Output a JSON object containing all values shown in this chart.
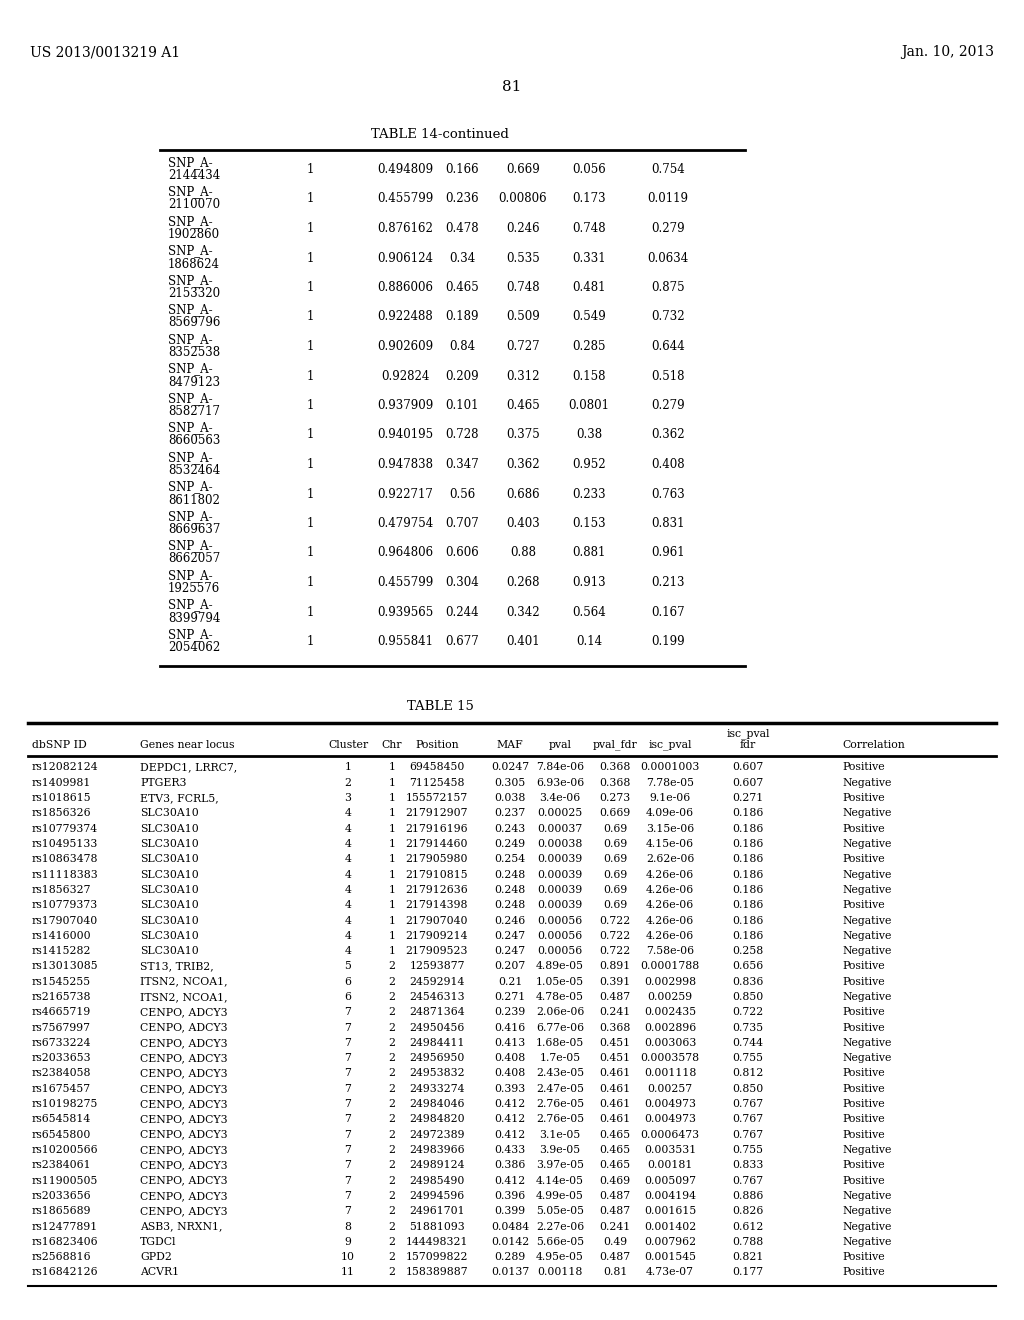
{
  "header_left": "US 2013/0013219 A1",
  "header_right": "Jan. 10, 2013",
  "page_number": "81",
  "table14_title": "TABLE 14-continued",
  "table15_title": "TABLE 15",
  "table14_rows": [
    [
      "SNP_A-",
      "2144434",
      "1",
      "0.494809",
      "0.166",
      "0.669",
      "0.056",
      "0.754"
    ],
    [
      "SNP_A-",
      "2110070",
      "1",
      "0.455799",
      "0.236",
      "0.00806",
      "0.173",
      "0.0119"
    ],
    [
      "SNP_A-",
      "1902860",
      "1",
      "0.876162",
      "0.478",
      "0.246",
      "0.748",
      "0.279"
    ],
    [
      "SNP_A-",
      "1868624",
      "1",
      "0.906124",
      "0.34",
      "0.535",
      "0.331",
      "0.0634"
    ],
    [
      "SNP_A-",
      "2153320",
      "1",
      "0.886006",
      "0.465",
      "0.748",
      "0.481",
      "0.875"
    ],
    [
      "SNP_A-",
      "8569796",
      "1",
      "0.922488",
      "0.189",
      "0.509",
      "0.549",
      "0.732"
    ],
    [
      "SNP_A-",
      "8352538",
      "1",
      "0.902609",
      "0.84",
      "0.727",
      "0.285",
      "0.644"
    ],
    [
      "SNP_A-",
      "8479123",
      "1",
      "0.92824",
      "0.209",
      "0.312",
      "0.158",
      "0.518"
    ],
    [
      "SNP_A-",
      "8582717",
      "1",
      "0.937909",
      "0.101",
      "0.465",
      "0.0801",
      "0.279"
    ],
    [
      "SNP_A-",
      "8660563",
      "1",
      "0.940195",
      "0.728",
      "0.375",
      "0.38",
      "0.362"
    ],
    [
      "SNP_A-",
      "8532464",
      "1",
      "0.947838",
      "0.347",
      "0.362",
      "0.952",
      "0.408"
    ],
    [
      "SNP_A-",
      "8611802",
      "1",
      "0.922717",
      "0.56",
      "0.686",
      "0.233",
      "0.763"
    ],
    [
      "SNP_A-",
      "8669637",
      "1",
      "0.479754",
      "0.707",
      "0.403",
      "0.153",
      "0.831"
    ],
    [
      "SNP_A-",
      "8662057",
      "1",
      "0.964806",
      "0.606",
      "0.88",
      "0.881",
      "0.961"
    ],
    [
      "SNP_A-",
      "1925576",
      "1",
      "0.455799",
      "0.304",
      "0.268",
      "0.913",
      "0.213"
    ],
    [
      "SNP_A-",
      "8399794",
      "1",
      "0.939565",
      "0.244",
      "0.342",
      "0.564",
      "0.167"
    ],
    [
      "SNP_A-",
      "2054062",
      "1",
      "0.955841",
      "0.677",
      "0.401",
      "0.14",
      "0.199"
    ]
  ],
  "table15_col_h1": [
    "",
    "",
    "",
    "",
    "",
    "",
    "",
    "",
    "",
    "isc_pval",
    ""
  ],
  "table15_col_h2": [
    "dbSNP ID",
    "Genes near locus",
    "Cluster",
    "Chr",
    "Position",
    "MAF",
    "pval",
    "pval_fdr",
    "isc_pval",
    "fdr",
    "Correlation"
  ],
  "table15_rows": [
    [
      "rs12082124",
      "DEPDC1, LRRC7,",
      "1",
      "1",
      "69458450",
      "0.0247",
      "7.84e-06",
      "0.368",
      "0.0001003",
      "0.607",
      "Positive"
    ],
    [
      "rs1409981",
      "PTGER3",
      "2",
      "1",
      "71125458",
      "0.305",
      "6.93e-06",
      "0.368",
      "7.78e-05",
      "0.607",
      "Negative"
    ],
    [
      "rs1018615",
      "ETV3, FCRL5,",
      "3",
      "1",
      "155572157",
      "0.038",
      "3.4e-06",
      "0.273",
      "9.1e-06",
      "0.271",
      "Positive"
    ],
    [
      "rs1856326",
      "SLC30A10",
      "4",
      "1",
      "217912907",
      "0.237",
      "0.00025",
      "0.669",
      "4.09e-06",
      "0.186",
      "Negative"
    ],
    [
      "rs10779374",
      "SLC30A10",
      "4",
      "1",
      "217916196",
      "0.243",
      "0.00037",
      "0.69",
      "3.15e-06",
      "0.186",
      "Positive"
    ],
    [
      "rs10495133",
      "SLC30A10",
      "4",
      "1",
      "217914460",
      "0.249",
      "0.00038",
      "0.69",
      "4.15e-06",
      "0.186",
      "Negative"
    ],
    [
      "rs10863478",
      "SLC30A10",
      "4",
      "1",
      "217905980",
      "0.254",
      "0.00039",
      "0.69",
      "2.62e-06",
      "0.186",
      "Positive"
    ],
    [
      "rs11118383",
      "SLC30A10",
      "4",
      "1",
      "217910815",
      "0.248",
      "0.00039",
      "0.69",
      "4.26e-06",
      "0.186",
      "Negative"
    ],
    [
      "rs1856327",
      "SLC30A10",
      "4",
      "1",
      "217912636",
      "0.248",
      "0.00039",
      "0.69",
      "4.26e-06",
      "0.186",
      "Negative"
    ],
    [
      "rs10779373",
      "SLC30A10",
      "4",
      "1",
      "217914398",
      "0.248",
      "0.00039",
      "0.69",
      "4.26e-06",
      "0.186",
      "Positive"
    ],
    [
      "rs17907040",
      "SLC30A10",
      "4",
      "1",
      "217907040",
      "0.246",
      "0.00056",
      "0.722",
      "4.26e-06",
      "0.186",
      "Negative"
    ],
    [
      "rs1416000",
      "SLC30A10",
      "4",
      "1",
      "217909214",
      "0.247",
      "0.00056",
      "0.722",
      "4.26e-06",
      "0.186",
      "Negative"
    ],
    [
      "rs1415282",
      "SLC30A10",
      "4",
      "1",
      "217909523",
      "0.247",
      "0.00056",
      "0.722",
      "7.58e-06",
      "0.258",
      "Negative"
    ],
    [
      "rs13013085",
      "ST13, TRIB2,",
      "5",
      "2",
      "12593877",
      "0.207",
      "4.89e-05",
      "0.891",
      "0.0001788",
      "0.656",
      "Positive"
    ],
    [
      "rs1545255",
      "ITSN2, NCOA1,",
      "6",
      "2",
      "24592914",
      "0.21",
      "1.05e-05",
      "0.391",
      "0.002998",
      "0.836",
      "Positive"
    ],
    [
      "rs2165738",
      "ITSN2, NCOA1,",
      "6",
      "2",
      "24546313",
      "0.271",
      "4.78e-05",
      "0.487",
      "0.00259",
      "0.850",
      "Negative"
    ],
    [
      "rs4665719",
      "CENPO, ADCY3",
      "7",
      "2",
      "24871364",
      "0.239",
      "2.06e-06",
      "0.241",
      "0.002435",
      "0.722",
      "Positive"
    ],
    [
      "rs7567997",
      "CENPO, ADCY3",
      "7",
      "2",
      "24950456",
      "0.416",
      "6.77e-06",
      "0.368",
      "0.002896",
      "0.735",
      "Positive"
    ],
    [
      "rs6733224",
      "CENPO, ADCY3",
      "7",
      "2",
      "24984411",
      "0.413",
      "1.68e-05",
      "0.451",
      "0.003063",
      "0.744",
      "Negative"
    ],
    [
      "rs2033653",
      "CENPO, ADCY3",
      "7",
      "2",
      "24956950",
      "0.408",
      "1.7e-05",
      "0.451",
      "0.0003578",
      "0.755",
      "Negative"
    ],
    [
      "rs2384058",
      "CENPO, ADCY3",
      "7",
      "2",
      "24953832",
      "0.408",
      "2.43e-05",
      "0.461",
      "0.001118",
      "0.812",
      "Positive"
    ],
    [
      "rs1675457",
      "CENPO, ADCY3",
      "7",
      "2",
      "24933274",
      "0.393",
      "2.47e-05",
      "0.461",
      "0.00257",
      "0.850",
      "Positive"
    ],
    [
      "rs10198275",
      "CENPO, ADCY3",
      "7",
      "2",
      "24984046",
      "0.412",
      "2.76e-05",
      "0.461",
      "0.004973",
      "0.767",
      "Positive"
    ],
    [
      "rs6545814",
      "CENPO, ADCY3",
      "7",
      "2",
      "24984820",
      "0.412",
      "2.76e-05",
      "0.461",
      "0.004973",
      "0.767",
      "Positive"
    ],
    [
      "rs6545800",
      "CENPO, ADCY3",
      "7",
      "2",
      "24972389",
      "0.412",
      "3.1e-05",
      "0.465",
      "0.0006473",
      "0.767",
      "Positive"
    ],
    [
      "rs10200566",
      "CENPO, ADCY3",
      "7",
      "2",
      "24983966",
      "0.433",
      "3.9e-05",
      "0.465",
      "0.003531",
      "0.755",
      "Negative"
    ],
    [
      "rs2384061",
      "CENPO, ADCY3",
      "7",
      "2",
      "24989124",
      "0.386",
      "3.97e-05",
      "0.465",
      "0.00181",
      "0.833",
      "Positive"
    ],
    [
      "rs11900505",
      "CENPO, ADCY3",
      "7",
      "2",
      "24985490",
      "0.412",
      "4.14e-05",
      "0.469",
      "0.005097",
      "0.767",
      "Positive"
    ],
    [
      "rs2033656",
      "CENPO, ADCY3",
      "7",
      "2",
      "24994596",
      "0.396",
      "4.99e-05",
      "0.487",
      "0.004194",
      "0.886",
      "Negative"
    ],
    [
      "rs1865689",
      "CENPO, ADCY3",
      "7",
      "2",
      "24961701",
      "0.399",
      "5.05e-05",
      "0.487",
      "0.001615",
      "0.826",
      "Negative"
    ],
    [
      "rs12477891",
      "ASB3, NRXN1,",
      "8",
      "2",
      "51881093",
      "0.0484",
      "2.27e-06",
      "0.241",
      "0.001402",
      "0.612",
      "Negative"
    ],
    [
      "rs16823406",
      "TGDCl",
      "9",
      "2",
      "144498321",
      "0.0142",
      "5.66e-05",
      "0.49",
      "0.007962",
      "0.788",
      "Negative"
    ],
    [
      "rs2568816",
      "GPD2",
      "10",
      "2",
      "157099822",
      "0.289",
      "4.95e-05",
      "0.487",
      "0.001545",
      "0.821",
      "Positive"
    ],
    [
      "rs16842126",
      "ACVR1",
      "11",
      "2",
      "158389887",
      "0.0137",
      "0.00118",
      "0.81",
      "4.73e-07",
      "0.177",
      "Positive"
    ]
  ]
}
